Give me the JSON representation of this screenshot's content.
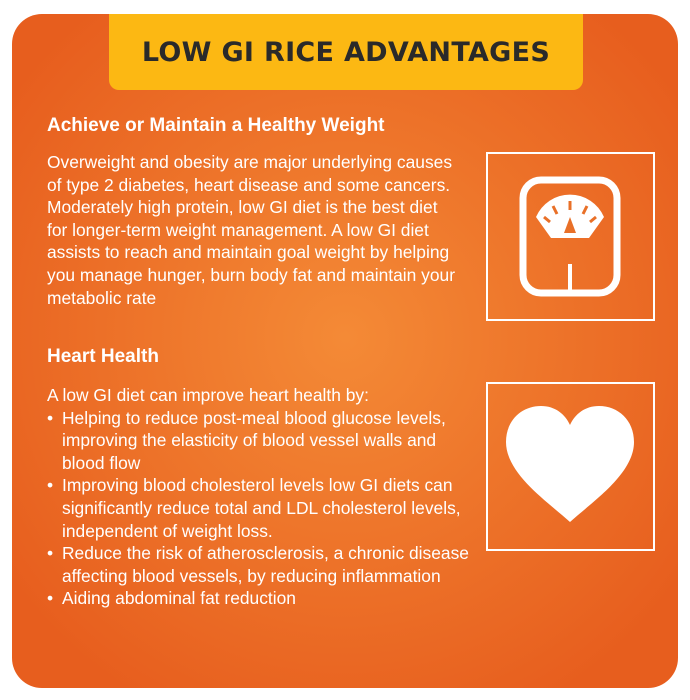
{
  "colors": {
    "card_gradient_edge": "#e75e1e",
    "card_gradient_center": "#f48a36",
    "banner": "#fcb813",
    "banner_text": "#2a2a2a",
    "text": "#ffffff"
  },
  "banner": {
    "title": "LOW GI RICE ADVANTAGES"
  },
  "weight_section": {
    "heading": "Achieve or Maintain a Healthy Weight",
    "lines": [
      "Overweight and obesity are major underlying causes",
      "of type 2 diabetes, heart disease and some cancers.",
      "Moderately high protein, low GI diet is the best diet",
      "for longer-term weight management. A low GI diet",
      "assists to reach and maintain goal weight by helping",
      "you manage hunger, burn body fat and maintain your",
      "metabolic rate"
    ],
    "icon": "weighing-scale-icon"
  },
  "heart_section": {
    "heading": "Heart Health",
    "intro": "A low GI diet can improve heart health by:",
    "bullet_glyph": "•",
    "bullets": [
      "Helping to reduce post-meal blood glucose levels, improving the elasticity of blood vessel walls and blood flow",
      "Improving blood cholesterol levels low GI diets can significantly reduce total and LDL cholesterol levels, independent of weight loss.",
      "Reduce the risk of atherosclerosis, a chronic disease affecting blood vessels, by reducing inflammation",
      "Aiding abdominal fat reduction"
    ],
    "icon": "heart-icon"
  }
}
